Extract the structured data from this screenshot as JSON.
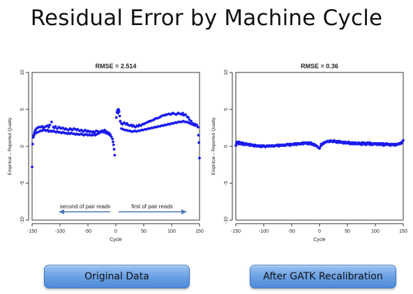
{
  "title": "Residual Error by Machine Cycle",
  "buttons": {
    "left_label": "Original Data",
    "right_label": "After GATK Recalibration"
  },
  "colors": {
    "points": "#1a1aee",
    "arrow": "#4a76b8",
    "button": "#6ea3e6"
  },
  "chart_data": [
    {
      "type": "scatter",
      "title": "RMSE = 2.514",
      "xlabel": "Cycle",
      "ylabel": "Empirical – Reported Quality",
      "xlim": [
        -150,
        150
      ],
      "ylim": [
        -10,
        10
      ],
      "xticks": [
        -150,
        -100,
        -50,
        0,
        50,
        100,
        150
      ],
      "yticks": [
        -10,
        -5,
        0,
        5,
        10
      ],
      "grid": false,
      "annotations": [
        {
          "text": "second of pair reads",
          "arrow": "left",
          "x_from": -10,
          "x_to": -100,
          "y": -10
        },
        {
          "text": "first of pair reads",
          "arrow": "right",
          "x_from": 5,
          "x_to": 125,
          "y": -10
        }
      ],
      "series": [
        {
          "x": [
            -150,
            -149,
            -148,
            -147,
            -146,
            -145,
            -144,
            -142,
            -140,
            -138,
            -135,
            -132,
            -130,
            -128,
            -125,
            -122,
            -120,
            -118,
            -115,
            -112,
            -110,
            -108,
            -105,
            -102,
            -100,
            -98,
            -95,
            -92,
            -90,
            -88,
            -85,
            -82,
            -80,
            -78,
            -75,
            -72,
            -70,
            -68,
            -65,
            -62,
            -60,
            -58,
            -55,
            -52,
            -50,
            -48,
            -45,
            -42,
            -40,
            -38,
            -35,
            -32,
            -30,
            -28,
            -25,
            -22,
            -20,
            -18,
            -15,
            -12,
            -10,
            -8,
            -6,
            -5,
            -4,
            -3,
            -2
          ],
          "y": [
            -2.8,
            0.3,
            1.2,
            1.4,
            1.8,
            2.0,
            2.2,
            2.4,
            2.5,
            2.6,
            2.6,
            2.7,
            2.5,
            2.6,
            2.7,
            2.8,
            2.6,
            2.9,
            3.3,
            2.6,
            2.5,
            2.7,
            2.4,
            2.6,
            2.5,
            2.4,
            2.5,
            2.3,
            2.4,
            2.3,
            2.2,
            2.4,
            2.3,
            2.2,
            2.4,
            2.3,
            2.2,
            2.3,
            2.1,
            2.2,
            2.1,
            2.0,
            2.2,
            2.0,
            2.1,
            2.0,
            2.0,
            1.9,
            2.0,
            1.9,
            2.1,
            2.0,
            1.9,
            2.0,
            2.1,
            1.9,
            2.0,
            1.8,
            1.7,
            1.6,
            1.5,
            1.3,
            1.0,
            0.6,
            0.2,
            -0.4,
            -1.2
          ]
        },
        {
          "x": [
            -147,
            -145,
            -143,
            -140,
            -137,
            -135,
            -132,
            -130,
            -127,
            -125,
            -122,
            -120,
            -117,
            -115,
            -112,
            -110,
            -107,
            -105,
            -102,
            -100,
            -97,
            -95,
            -92,
            -90,
            -87,
            -85,
            -82,
            -80,
            -77,
            -75,
            -72,
            -70,
            -67,
            -65,
            -62,
            -60,
            -57,
            -55,
            -52,
            -50,
            -47,
            -45,
            -42,
            -40,
            -37,
            -35,
            -32,
            -30,
            -27,
            -25,
            -22,
            -20,
            -17,
            -15,
            -12,
            -10
          ],
          "y": [
            1.5,
            1.7,
            1.8,
            1.9,
            2.0,
            2.1,
            2.1,
            2.2,
            2.2,
            2.1,
            2.2,
            2.0,
            2.1,
            2.0,
            2.1,
            2.0,
            1.9,
            2.0,
            1.9,
            1.9,
            1.8,
            1.9,
            1.8,
            1.8,
            1.7,
            1.8,
            1.7,
            1.8,
            1.7,
            1.7,
            1.6,
            1.7,
            1.6,
            1.6,
            1.7,
            1.6,
            1.5,
            1.6,
            1.6,
            1.5,
            1.6,
            1.5,
            1.5,
            1.6,
            1.5,
            1.6,
            1.7,
            1.8,
            1.9,
            2.0,
            2.1,
            2.2,
            2.0,
            1.9,
            1.8,
            1.6
          ]
        },
        {
          "x": [
            1,
            2,
            3,
            4,
            5,
            6,
            7,
            8,
            10,
            12,
            15,
            18,
            20,
            22,
            25,
            28,
            30,
            32,
            35,
            38,
            40,
            42,
            45,
            48,
            50,
            52,
            55,
            58,
            60,
            62,
            65,
            68,
            70,
            72,
            75,
            78,
            80,
            82,
            85,
            88,
            90,
            92,
            95,
            98,
            100,
            102,
            105,
            108,
            110,
            112,
            115,
            118,
            120,
            122,
            125,
            128,
            130,
            132,
            135,
            138,
            140,
            142,
            145,
            147,
            148,
            149,
            150
          ],
          "y": [
            3.9,
            4.6,
            4.9,
            4.5,
            5.0,
            4.7,
            4.1,
            3.4,
            3.1,
            3.0,
            3.2,
            3.0,
            3.1,
            2.9,
            2.8,
            2.9,
            2.7,
            2.8,
            2.6,
            2.8,
            2.7,
            2.9,
            2.8,
            3.0,
            3.0,
            3.1,
            3.2,
            3.3,
            3.4,
            3.4,
            3.5,
            3.6,
            3.7,
            3.8,
            3.8,
            3.9,
            4.0,
            4.1,
            4.2,
            4.2,
            4.3,
            4.3,
            4.4,
            4.3,
            4.4,
            4.5,
            4.4,
            4.3,
            4.4,
            4.5,
            4.4,
            4.3,
            4.5,
            4.2,
            4.3,
            4.0,
            3.9,
            3.6,
            3.4,
            3.1,
            3.0,
            3.0,
            2.9,
            2.6,
            1.5,
            0.5,
            -1.6
          ]
        },
        {
          "x": [
            10,
            13,
            16,
            19,
            22,
            25,
            28,
            31,
            34,
            37,
            40,
            43,
            46,
            49,
            52,
            55,
            58,
            61,
            64,
            67,
            70,
            73,
            76,
            79,
            82,
            85,
            88,
            91,
            94,
            97,
            100,
            103,
            106,
            109,
            112,
            115,
            118,
            121,
            124,
            127,
            130,
            133,
            136,
            139,
            142
          ],
          "y": [
            2.4,
            2.3,
            2.2,
            2.2,
            2.1,
            2.1,
            2.0,
            2.0,
            2.1,
            2.0,
            2.1,
            2.1,
            2.2,
            2.2,
            2.3,
            2.3,
            2.4,
            2.4,
            2.5,
            2.5,
            2.6,
            2.6,
            2.7,
            2.7,
            2.8,
            2.8,
            2.9,
            2.9,
            3.0,
            3.0,
            3.1,
            3.1,
            3.2,
            3.2,
            3.3,
            3.3,
            3.3,
            3.4,
            3.3,
            3.3,
            3.2,
            3.1,
            3.0,
            2.9,
            2.8
          ]
        }
      ]
    },
    {
      "type": "scatter",
      "title": "RMSE = 0.36",
      "xlabel": "Cycle",
      "ylabel": "Empirical – Reported Quality",
      "xlim": [
        -150,
        150
      ],
      "ylim": [
        -10,
        10
      ],
      "xticks": [
        -150,
        -100,
        -50,
        0,
        50,
        100,
        150
      ],
      "yticks": [
        -10,
        -5,
        0,
        5,
        10
      ],
      "grid": false,
      "series": [
        {
          "x": [
            -150,
            -148,
            -146,
            -144,
            -142,
            -140,
            -138,
            -136,
            -134,
            -132,
            -130,
            -128,
            -126,
            -124,
            -122,
            -120,
            -118,
            -116,
            -114,
            -112,
            -110,
            -108,
            -106,
            -104,
            -102,
            -100,
            -98,
            -96,
            -94,
            -92,
            -90,
            -88,
            -86,
            -84,
            -82,
            -80,
            -78,
            -76,
            -74,
            -72,
            -70,
            -68,
            -66,
            -64,
            -62,
            -60,
            -58,
            -56,
            -54,
            -52,
            -50,
            -48,
            -46,
            -44,
            -42,
            -40,
            -38,
            -36,
            -34,
            -32,
            -30,
            -28,
            -26,
            -24,
            -22,
            -20,
            -18,
            -16,
            -14,
            -12,
            -10,
            -8,
            -6,
            -4,
            -2
          ],
          "y": [
            0.1,
            0.6,
            0.5,
            0.6,
            0.5,
            0.4,
            0.5,
            0.4,
            0.3,
            0.4,
            0.3,
            0.3,
            0.2,
            0.3,
            0.2,
            0.2,
            0.1,
            0.2,
            0.1,
            0.1,
            0.0,
            0.1,
            0.0,
            0.1,
            0.0,
            0.1,
            0.0,
            0.0,
            0.1,
            0.0,
            0.1,
            0.0,
            0.1,
            0.1,
            0.0,
            0.1,
            0.1,
            0.2,
            0.1,
            0.2,
            0.1,
            0.2,
            0.2,
            0.1,
            0.2,
            0.2,
            0.3,
            0.2,
            0.3,
            0.3,
            0.2,
            0.3,
            0.3,
            0.4,
            0.3,
            0.4,
            0.4,
            0.3,
            0.4,
            0.4,
            0.5,
            0.4,
            0.5,
            0.4,
            0.5,
            0.4,
            0.5,
            0.5,
            0.4,
            0.3,
            0.3,
            0.2,
            0.1,
            0.0,
            -0.2
          ]
        },
        {
          "x": [
            -149,
            -145,
            -141,
            -137,
            -133,
            -129,
            -125,
            -121,
            -117,
            -113,
            -109,
            -105,
            -101,
            -97,
            -93,
            -89,
            -85,
            -81,
            -77,
            -73,
            -69,
            -65,
            -61,
            -57,
            -53,
            -49,
            -45,
            -41,
            -37,
            -33,
            -29,
            -25,
            -21,
            -17,
            -13,
            -9,
            -5
          ],
          "y": [
            0.4,
            0.3,
            0.3,
            0.2,
            0.2,
            0.2,
            0.1,
            0.1,
            0.0,
            0.0,
            0.0,
            -0.1,
            0.0,
            -0.1,
            0.0,
            0.0,
            0.0,
            0.0,
            0.1,
            0.0,
            0.1,
            0.1,
            0.1,
            0.2,
            0.1,
            0.2,
            0.2,
            0.2,
            0.3,
            0.3,
            0.3,
            0.4,
            0.3,
            0.3,
            0.2,
            0.1,
            0.0
          ]
        },
        {
          "x": [
            0,
            2,
            4,
            6,
            8,
            10,
            12,
            14,
            16,
            18,
            20,
            22,
            24,
            26,
            28,
            30,
            32,
            34,
            36,
            38,
            40,
            42,
            44,
            46,
            48,
            50,
            52,
            54,
            56,
            58,
            60,
            62,
            64,
            66,
            68,
            70,
            72,
            74,
            76,
            78,
            80,
            82,
            84,
            86,
            88,
            90,
            92,
            94,
            96,
            98,
            100,
            102,
            104,
            106,
            108,
            110,
            112,
            114,
            116,
            118,
            120,
            122,
            124,
            126,
            128,
            130,
            132,
            134,
            136,
            138,
            140,
            142,
            144,
            146,
            148,
            150
          ],
          "y": [
            -0.3,
            0.0,
            0.2,
            0.3,
            0.4,
            0.5,
            0.6,
            0.7,
            0.7,
            0.6,
            0.8,
            0.7,
            0.6,
            0.8,
            0.7,
            0.6,
            0.7,
            0.6,
            0.7,
            0.6,
            0.5,
            0.6,
            0.5,
            0.6,
            0.5,
            0.5,
            0.6,
            0.5,
            0.4,
            0.5,
            0.5,
            0.4,
            0.5,
            0.4,
            0.4,
            0.5,
            0.4,
            0.4,
            0.5,
            0.4,
            0.5,
            0.4,
            0.4,
            0.5,
            0.4,
            0.5,
            0.4,
            0.4,
            0.3,
            0.4,
            0.4,
            0.3,
            0.4,
            0.4,
            0.3,
            0.4,
            0.3,
            0.4,
            0.3,
            0.3,
            0.4,
            0.3,
            0.3,
            0.2,
            0.3,
            0.3,
            0.2,
            0.3,
            0.3,
            0.2,
            0.3,
            0.4,
            0.3,
            0.5,
            0.6,
            0.8
          ]
        },
        {
          "x": [
            3,
            7,
            11,
            15,
            19,
            23,
            27,
            31,
            35,
            39,
            43,
            47,
            51,
            55,
            59,
            63,
            67,
            71,
            75,
            79,
            83,
            87,
            91,
            95,
            99,
            103,
            107,
            111,
            115,
            119,
            123,
            127,
            131,
            135,
            139,
            143,
            147
          ],
          "y": [
            0.3,
            0.5,
            0.6,
            0.6,
            0.7,
            0.6,
            0.6,
            0.5,
            0.5,
            0.5,
            0.4,
            0.4,
            0.4,
            0.3,
            0.3,
            0.3,
            0.3,
            0.3,
            0.2,
            0.3,
            0.2,
            0.3,
            0.2,
            0.2,
            0.3,
            0.2,
            0.2,
            0.2,
            0.1,
            0.2,
            0.2,
            0.1,
            0.2,
            0.1,
            0.2,
            0.3,
            0.4
          ]
        }
      ]
    }
  ]
}
